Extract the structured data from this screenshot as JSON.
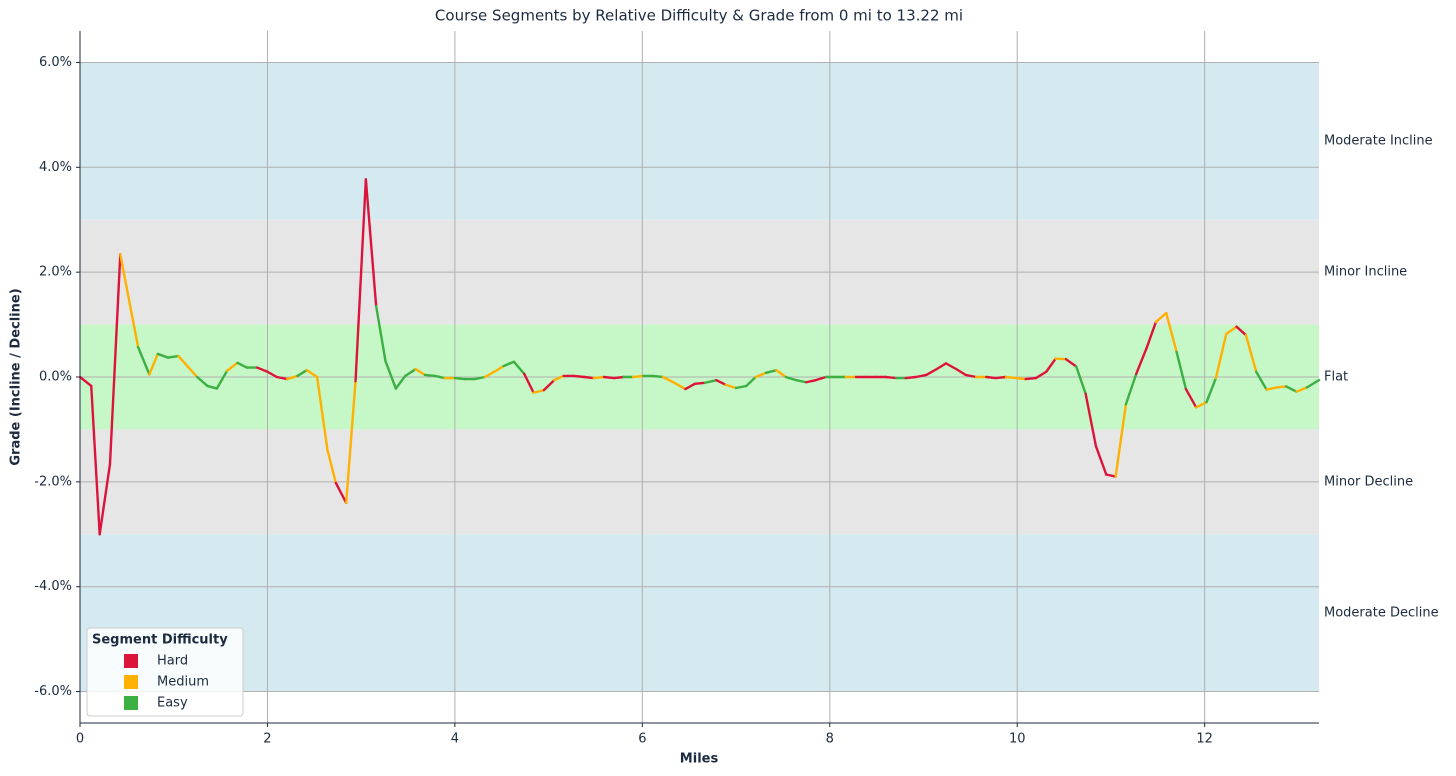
{
  "chart_data": {
    "type": "line",
    "title": "Course Segments by Relative Difficulty & Grade from 0 mi to 13.22 mi",
    "x_label": "Miles",
    "y_label": "Grade (Incline / Decline)",
    "legend_title": "Segment Difficulty",
    "legend_position": "lower left",
    "grid": true,
    "xlim": [
      0,
      13.22
    ],
    "ylim": [
      -6.6,
      6.6
    ],
    "xticks": [
      0,
      2,
      4,
      6,
      8,
      10,
      12
    ],
    "yticks": [
      {
        "value": -6,
        "label": "-6.0%"
      },
      {
        "value": -4,
        "label": "-4.0%"
      },
      {
        "value": -2,
        "label": "-2.0%"
      },
      {
        "value": 0,
        "label": "0.0%"
      },
      {
        "value": 2,
        "label": "2.0%"
      },
      {
        "value": 4,
        "label": "4.0%"
      },
      {
        "value": 6,
        "label": "6.0%"
      }
    ],
    "bands": [
      {
        "label": "Moderate Incline",
        "from": 3,
        "to": 6,
        "color": "#d4eaf0"
      },
      {
        "label": "Minor Incline",
        "from": 1,
        "to": 3,
        "color": "#e6e6e6"
      },
      {
        "label": "Flat",
        "from": -1,
        "to": 1,
        "color": "#c6f7c6"
      },
      {
        "label": "Minor Decline",
        "from": -3,
        "to": -1,
        "color": "#e6e6e6"
      },
      {
        "label": "Moderate Decline",
        "from": -6,
        "to": -3,
        "color": "#d4eaf0"
      }
    ],
    "series": [
      {
        "name": "Hard",
        "color": "#dc143c"
      },
      {
        "name": "Medium",
        "color": "#ffb000"
      },
      {
        "name": "Easy",
        "color": "#3cb043"
      }
    ],
    "x": [
      0,
      0.12,
      0.21,
      0.32,
      0.43,
      0.52,
      0.62,
      0.74,
      0.83,
      0.94,
      1.05,
      1.15,
      1.25,
      1.36,
      1.46,
      1.57,
      1.68,
      1.78,
      1.89,
      2.0,
      2.1,
      2.21,
      2.32,
      2.42,
      2.53,
      2.64,
      2.73,
      2.84,
      2.94,
      3.05,
      3.16,
      3.26,
      3.37,
      3.47,
      3.58,
      3.68,
      3.79,
      3.89,
      4.0,
      4.1,
      4.21,
      4.32,
      4.43,
      4.52,
      4.63,
      4.74,
      4.84,
      4.95,
      5.06,
      5.16,
      5.27,
      5.38,
      5.48,
      5.59,
      5.7,
      5.8,
      5.9,
      6.01,
      6.11,
      6.22,
      6.33,
      6.46,
      6.56,
      6.67,
      6.79,
      6.89,
      7.0,
      7.11,
      7.21,
      7.32,
      7.43,
      7.53,
      7.64,
      7.75,
      7.85,
      7.96,
      8.07,
      8.17,
      8.28,
      8.39,
      8.49,
      8.6,
      8.71,
      8.81,
      8.92,
      9.03,
      9.14,
      9.24,
      9.35,
      9.45,
      9.56,
      9.67,
      9.77,
      9.88,
      9.99,
      10.09,
      10.2,
      10.31,
      10.41,
      10.52,
      10.63,
      10.73,
      10.84,
      10.95,
      11.05,
      11.16,
      11.27,
      11.38,
      11.48,
      11.59,
      11.7,
      11.8,
      11.91,
      12.02,
      12.12,
      12.23,
      12.34,
      12.44,
      12.55,
      12.66,
      12.77,
      12.87,
      12.98,
      13.09,
      13.22
    ],
    "values": [
      0,
      -0.17,
      -3.0,
      -1.66,
      2.34,
      1.5,
      0.57,
      0.05,
      0.44,
      0.37,
      0.4,
      0.2,
      0.0,
      -0.17,
      -0.22,
      0.12,
      0.27,
      0.18,
      0.18,
      0.1,
      0.0,
      -0.04,
      0.02,
      0.13,
      0.0,
      -1.39,
      -2.02,
      -2.4,
      -0.08,
      3.77,
      1.35,
      0.3,
      -0.22,
      0.02,
      0.15,
      0.04,
      0.02,
      -0.02,
      -0.02,
      -0.04,
      -0.04,
      0.0,
      0.11,
      0.21,
      0.29,
      0.06,
      -0.3,
      -0.25,
      -0.06,
      0.02,
      0.02,
      0,
      -0.02,
      0,
      -0.02,
      0,
      0,
      0.02,
      0.02,
      0,
      -0.1,
      -0.23,
      -0.13,
      -0.11,
      -0.06,
      -0.15,
      -0.21,
      -0.17,
      0,
      0.08,
      0.13,
      0,
      -0.06,
      -0.1,
      -0.06,
      0,
      0,
      0,
      0,
      0,
      0,
      0,
      -0.02,
      -0.02,
      0,
      0.04,
      0.15,
      0.26,
      0.15,
      0.04,
      0,
      0,
      -0.02,
      0,
      -0.02,
      -0.04,
      -0.02,
      0.1,
      0.35,
      0.34,
      0.2,
      -0.32,
      -1.32,
      -1.86,
      -1.9,
      -0.52,
      0.06,
      0.55,
      1.05,
      1.22,
      0.48,
      -0.23,
      -0.58,
      -0.48,
      -0.02,
      0.82,
      0.96,
      0.8,
      0.1,
      -0.24,
      -0.2,
      -0.18,
      -0.28,
      -0.2,
      -0.06
    ],
    "segment_series": [
      0,
      0,
      0,
      0,
      1,
      1,
      2,
      1,
      2,
      2,
      1,
      1,
      2,
      2,
      2,
      1,
      2,
      2,
      0,
      0,
      0,
      1,
      2,
      1,
      1,
      1,
      0,
      1,
      0,
      0,
      2,
      2,
      2,
      2,
      1,
      2,
      2,
      1,
      2,
      2,
      2,
      1,
      1,
      2,
      2,
      0,
      1,
      0,
      1,
      0,
      0,
      0,
      1,
      0,
      0,
      2,
      1,
      2,
      2,
      1,
      1,
      0,
      0,
      2,
      0,
      1,
      2,
      2,
      1,
      2,
      1,
      2,
      2,
      0,
      0,
      2,
      2,
      1,
      0,
      0,
      0,
      0,
      2,
      0,
      0,
      0,
      0,
      0,
      0,
      0,
      1,
      0,
      0,
      1,
      1,
      0,
      0,
      0,
      1,
      0,
      2,
      0,
      0,
      0,
      1,
      2,
      0,
      0,
      1,
      1,
      2,
      0,
      1,
      2,
      1,
      1,
      0,
      1,
      2,
      1,
      1,
      2,
      1,
      2
    ]
  }
}
